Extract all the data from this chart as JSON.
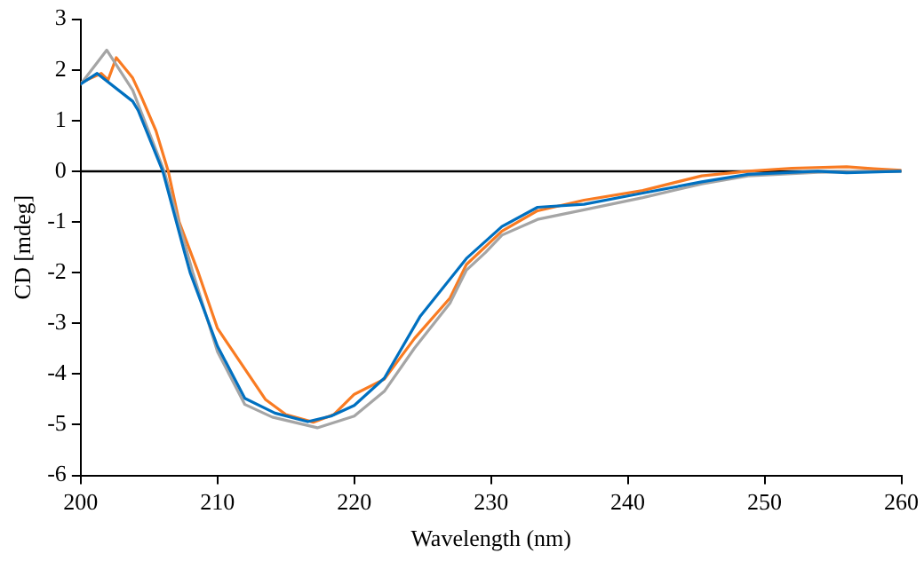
{
  "chart_data": {
    "type": "line",
    "xlabel": "Wavelength (nm)",
    "ylabel": "CD [mdeg]",
    "xlim": [
      200,
      260
    ],
    "xticks": [
      200,
      210,
      220,
      230,
      240,
      250,
      260
    ],
    "ylim": [
      -6,
      3
    ],
    "yticks": [
      -6,
      -5,
      -4,
      -3,
      -2,
      -1,
      0,
      1,
      2,
      3
    ],
    "grid": false,
    "legend": false,
    "marker": "none",
    "line_style": "solid",
    "ref_lines": [
      {
        "axis": "y",
        "value": 0,
        "color": "#000000"
      }
    ],
    "series": [
      {
        "color": "#0070c0",
        "x": [
          200,
          201.2,
          203.8,
          204.2,
          206,
          207.6,
          208,
          210,
          212,
          214.2,
          216.6,
          218.3,
          220,
          222.2,
          224.8,
          228.2,
          230.8,
          233.4,
          236.8,
          241.1,
          245.4,
          248.8,
          253.9,
          256,
          260
        ],
        "values": [
          1.72,
          1.93,
          1.38,
          1.2,
          0,
          -1.61,
          -2,
          -3.45,
          -4.48,
          -4.77,
          -4.94,
          -4.83,
          -4.62,
          -4.08,
          -2.87,
          -1.72,
          -1.09,
          -0.71,
          -0.65,
          -0.43,
          -0.21,
          -0.06,
          0,
          -0.03,
          0
        ]
      },
      {
        "color": "#a5a5a5",
        "x": [
          200,
          201.9,
          203.8,
          206.1,
          208.2,
          210,
          212,
          214,
          217.3,
          220,
          222.2,
          224.4,
          227,
          228.2,
          229.6,
          230.8,
          233.4,
          236.8,
          241.1,
          245.4,
          248.8,
          253.9,
          260
        ],
        "values": [
          1.72,
          2.39,
          1.6,
          0,
          -2,
          -3.56,
          -4.6,
          -4.85,
          -5.06,
          -4.83,
          -4.34,
          -3.49,
          -2.6,
          -1.95,
          -1.6,
          -1.26,
          -0.95,
          -0.76,
          -0.52,
          -0.25,
          -0.09,
          -0.02,
          0
        ]
      },
      {
        "color": "#f97b22",
        "x": [
          200,
          201.5,
          202,
          202.6,
          203.8,
          204.4,
          205.5,
          206.4,
          207.2,
          208.6,
          210,
          212,
          213.5,
          215,
          217,
          218.5,
          220,
          222.2,
          224.4,
          227,
          228.2,
          230.8,
          233.4,
          236.8,
          241.1,
          245.4,
          248.8,
          252,
          256,
          258,
          260
        ],
        "values": [
          1.75,
          1.93,
          1.8,
          2.24,
          1.84,
          1.49,
          0.8,
          0,
          -1,
          -2,
          -3.1,
          -3.9,
          -4.5,
          -4.8,
          -4.95,
          -4.8,
          -4.4,
          -4.1,
          -3.3,
          -2.5,
          -1.84,
          -1.18,
          -0.78,
          -0.57,
          -0.38,
          -0.09,
          0,
          0.06,
          0.09,
          0.05,
          0.02
        ]
      }
    ]
  }
}
